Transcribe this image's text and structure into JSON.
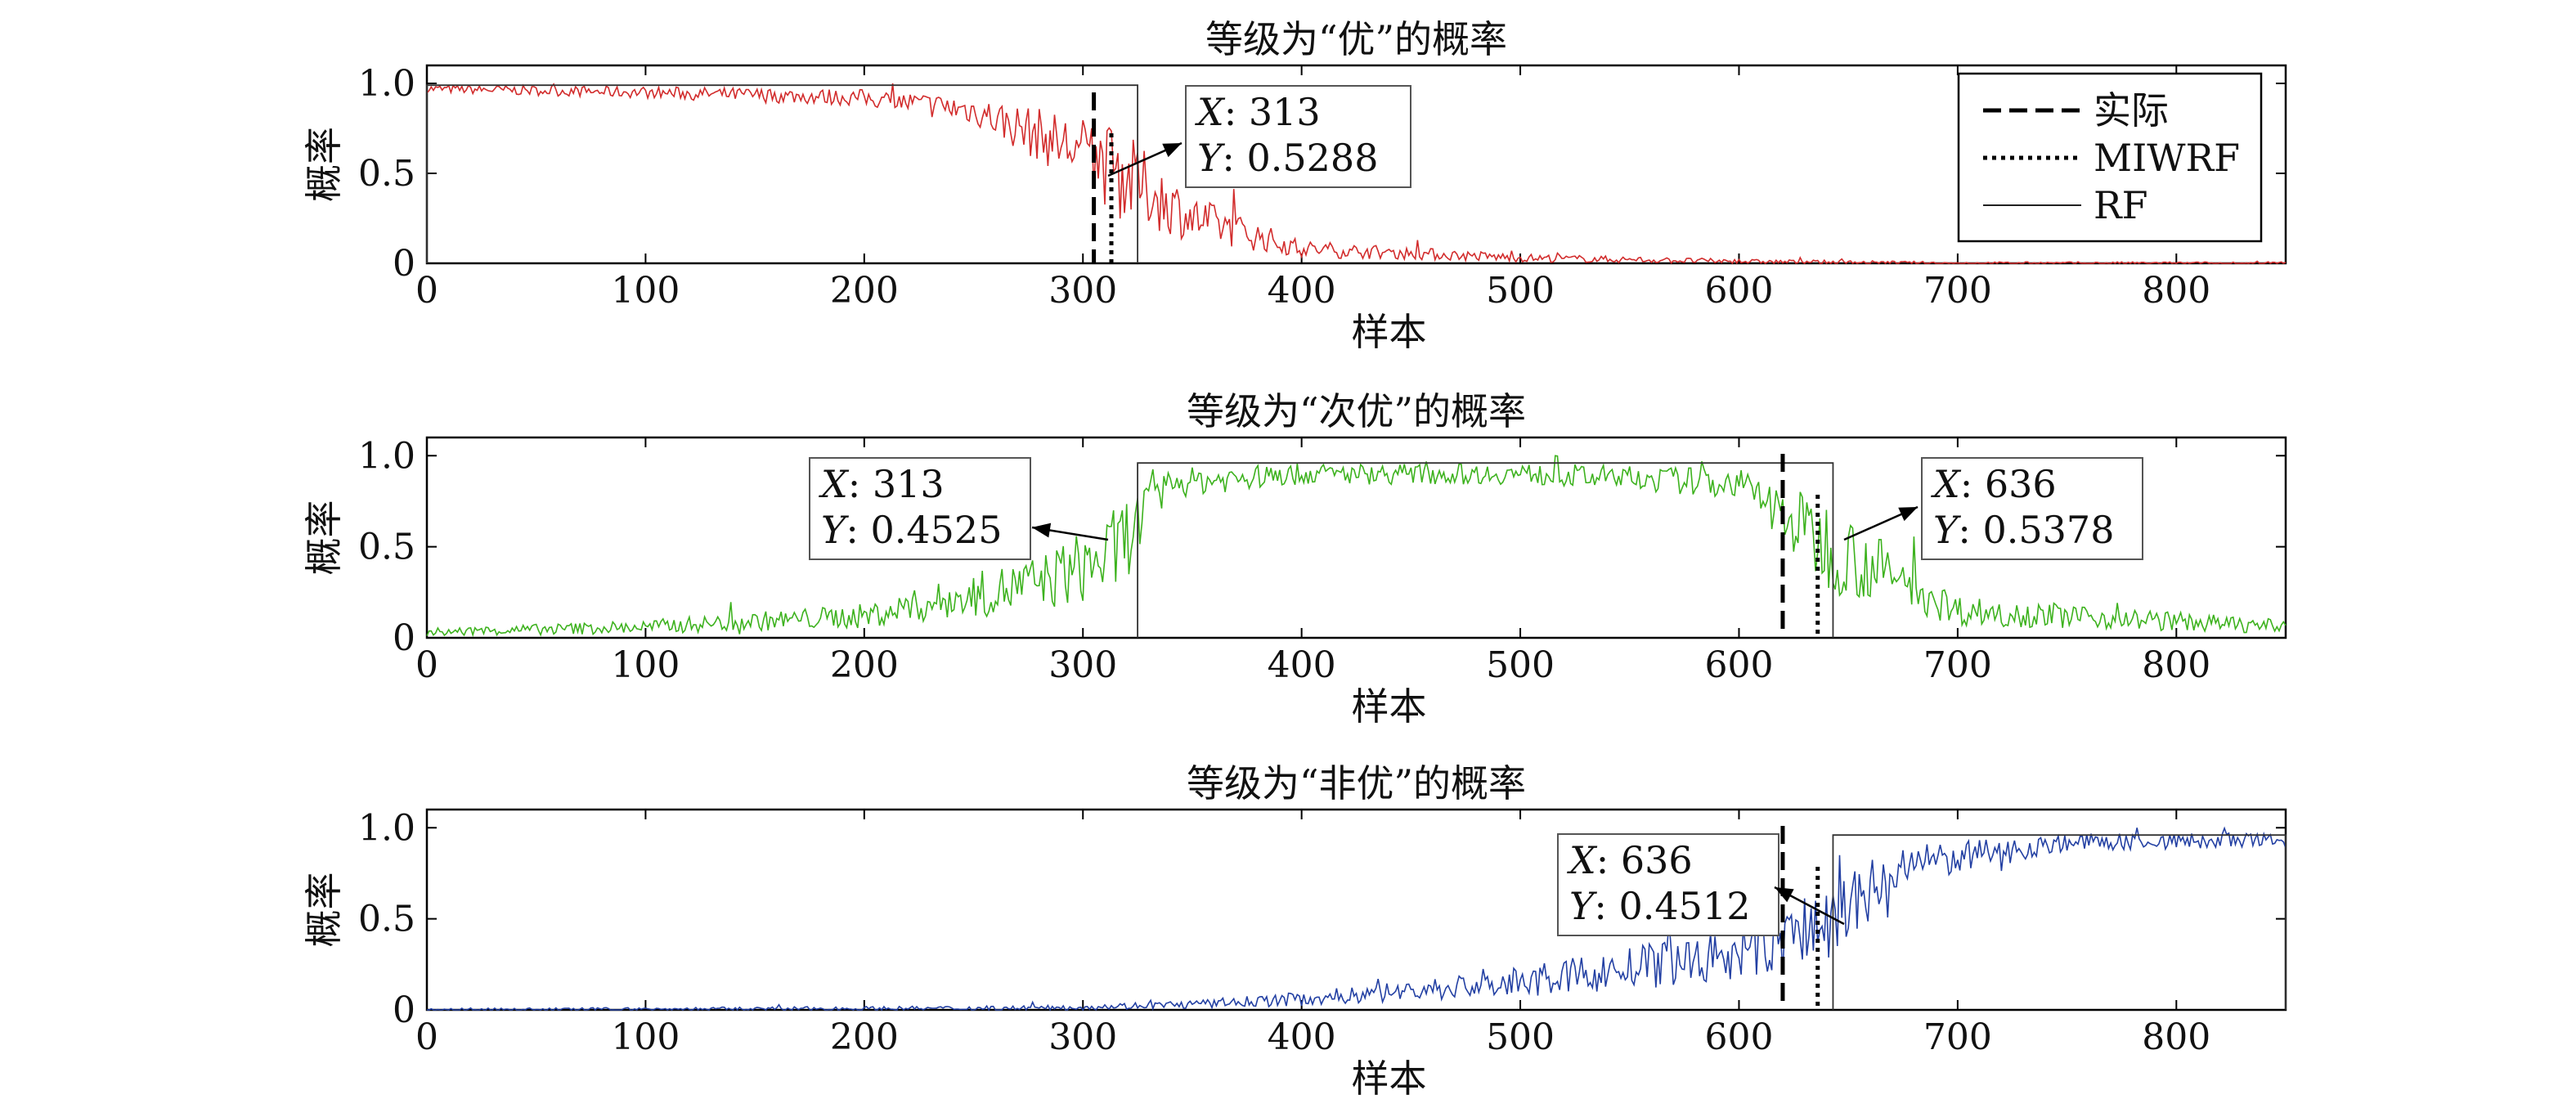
{
  "chart_data": {
    "type": "line",
    "panels": [
      {
        "title": "等级为“优”的概率",
        "xlabel": "样本",
        "ylabel": "概率",
        "xlim": [
          0,
          850
        ],
        "ylim": [
          0,
          1.1
        ],
        "xticks": [
          "0",
          "100",
          "200",
          "300",
          "400",
          "500",
          "600",
          "700",
          "800"
        ],
        "yticks": [
          "0",
          "0.5",
          "1.0"
        ],
        "color": "#d22c2c",
        "series": [
          {
            "name": "RF",
            "style": "noisy-decreasing",
            "x": [
              0,
              100,
              200,
              250,
              300,
              313,
              350,
              400,
              500,
              600,
              700,
              850
            ],
            "y": [
              0.97,
              0.95,
              0.92,
              0.85,
              0.62,
              0.53,
              0.25,
              0.08,
              0.03,
              0.01,
              0.0,
              0.0
            ]
          }
        ],
        "vlines": {
          "actual": 305,
          "miwrf": 313
        },
        "box": {
          "x0": 0,
          "x1": 325,
          "y": 0.99
        },
        "datatips": [
          {
            "x_label": "X",
            "x_value": "313",
            "y_label": "Y",
            "y_value": "0.5288"
          }
        ],
        "legend": {
          "position": "top-right",
          "entries": [
            "实际",
            "MIWRF",
            "RF"
          ]
        }
      },
      {
        "title": "等级为“次优”的概率",
        "xlabel": "样本",
        "ylabel": "概率",
        "xlim": [
          0,
          850
        ],
        "ylim": [
          0,
          1.1
        ],
        "xticks": [
          "0",
          "100",
          "200",
          "300",
          "400",
          "500",
          "600",
          "700",
          "800"
        ],
        "yticks": [
          "0",
          "0.5",
          "1.0"
        ],
        "color": "#3db21e",
        "series": [
          {
            "name": "RF",
            "style": "noisy-hump",
            "x": [
              0,
              100,
              200,
              280,
              313,
              340,
              400,
              500,
              600,
              636,
              700,
              850
            ],
            "y": [
              0.03,
              0.06,
              0.12,
              0.3,
              0.45,
              0.85,
              0.9,
              0.9,
              0.85,
              0.54,
              0.15,
              0.06
            ]
          }
        ],
        "vlines": {
          "actual": 620,
          "miwrf": 636
        },
        "box": {
          "x0": 325,
          "x1": 643,
          "y": 0.96
        },
        "datatips": [
          {
            "x_label": "X",
            "x_value": "313",
            "y_label": "Y",
            "y_value": "0.4525"
          },
          {
            "x_label": "X",
            "x_value": "636",
            "y_label": "Y",
            "y_value": "0.5378"
          }
        ]
      },
      {
        "title": "等级为“非优”的概率",
        "xlabel": "样本",
        "ylabel": "概率",
        "xlim": [
          0,
          850
        ],
        "ylim": [
          0,
          1.1
        ],
        "xticks": [
          "0",
          "100",
          "200",
          "300",
          "400",
          "500",
          "600",
          "700",
          "800"
        ],
        "yticks": [
          "0",
          "0.5",
          "1.0"
        ],
        "color": "#2340a3",
        "series": [
          {
            "name": "RF",
            "style": "noisy-increasing",
            "x": [
              0,
              280,
              350,
              400,
              500,
              600,
              636,
              680,
              750,
              850
            ],
            "y": [
              0.0,
              0.01,
              0.03,
              0.06,
              0.15,
              0.3,
              0.45,
              0.8,
              0.92,
              0.93
            ]
          }
        ],
        "vlines": {
          "actual": 620,
          "miwrf": 636
        },
        "box": {
          "x0": 643,
          "x1": 850,
          "y": 0.96
        },
        "datatips": [
          {
            "x_label": "X",
            "x_value": "636",
            "y_label": "Y",
            "y_value": "0.4512"
          }
        ]
      }
    ]
  }
}
